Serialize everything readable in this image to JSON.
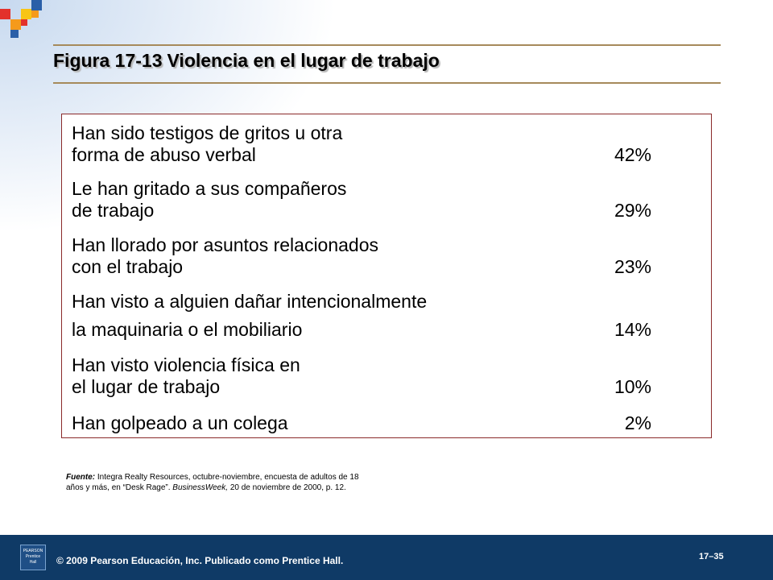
{
  "title": {
    "number": "Figura 17-13",
    "text": "Violencia en el lugar de trabajo"
  },
  "items": [
    {
      "line1": "Han sido testigos de gritos u otra",
      "line2": "forma de abuso verbal",
      "pct": "42%"
    },
    {
      "line1": "Le han gritado a sus compañeros",
      "line2": "de trabajo",
      "pct": "29%"
    },
    {
      "line1": "Han llorado por asuntos relacionados",
      "line2": "con el trabajo",
      "pct": "23%"
    },
    {
      "line1": "Han visto a alguien dañar intencionalmente",
      "line2": "la maquinaria o el mobiliario",
      "pct": "14%"
    },
    {
      "line1": "Han visto violencia física en",
      "line2": "el lugar de trabajo",
      "pct": "10%"
    },
    {
      "line1": "Han golpeado a un colega",
      "line2": "",
      "pct": "2%"
    }
  ],
  "source": {
    "label": "Fuente:",
    "text1": "Integra Realty Resources, octubre-noviembre, encuesta de adultos de 18 años y más, en “Desk Rage”.",
    "publication": "BusinessWeek,",
    "text2": "20 de noviembre de 2000, p. 12."
  },
  "footer": {
    "copyright": "© 2009 Pearson Educación, Inc. Publicado como Prentice Hall.",
    "page": "17–35",
    "logo_text": [
      "PEARSON",
      "Prentice",
      "Hall"
    ]
  },
  "colors": {
    "rule": "#a68a5b",
    "box_border": "#8a2a2a",
    "footer_bg": "#0f3a66",
    "logo_red": "#e3312b",
    "logo_orange": "#f59a1b",
    "logo_yellow": "#f8c515",
    "logo_blue": "#2a5fa8"
  }
}
